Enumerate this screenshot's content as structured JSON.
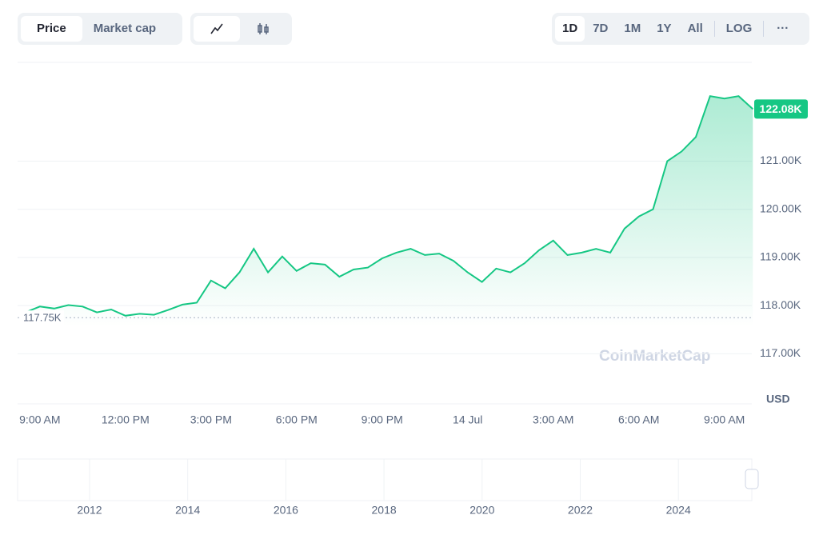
{
  "controls": {
    "tabs": [
      "Price",
      "Market cap"
    ],
    "ranges": [
      "1D",
      "7D",
      "1M",
      "1Y",
      "All",
      "LOG"
    ],
    "more": "···"
  },
  "chart_data": {
    "type": "line",
    "categories": [
      null,
      "9:00 AM",
      null,
      null,
      null,
      null,
      null,
      "12:00 PM",
      null,
      null,
      null,
      null,
      null,
      "3:00 PM",
      null,
      null,
      null,
      null,
      null,
      "6:00 PM",
      null,
      null,
      null,
      null,
      null,
      "9:00 PM",
      null,
      null,
      null,
      null,
      null,
      "14 Jul",
      null,
      null,
      null,
      null,
      null,
      "3:00 AM",
      null,
      null,
      null,
      null,
      null,
      "6:00 AM",
      null,
      null,
      null,
      null,
      null,
      "9:00 AM",
      null,
      null
    ],
    "series": [
      {
        "name": "Price",
        "color": "#16c784",
        "values": [
          117.86,
          117.98,
          117.94,
          118.01,
          117.98,
          117.86,
          117.92,
          117.79,
          117.83,
          117.81,
          117.91,
          118.02,
          118.06,
          118.52,
          118.36,
          118.69,
          119.18,
          118.69,
          119.02,
          118.72,
          118.88,
          118.85,
          118.6,
          118.75,
          118.79,
          118.98,
          119.1,
          119.18,
          119.05,
          119.08,
          118.93,
          118.69,
          118.49,
          118.77,
          118.69,
          118.88,
          119.15,
          119.35,
          119.05,
          119.1,
          119.18,
          119.1,
          119.6,
          119.85,
          120.0,
          121.0,
          121.2,
          121.5,
          122.35,
          122.3,
          122.35,
          122.08
        ]
      }
    ],
    "ylim": [
      115.96,
      123.05
    ],
    "yticks": [
      {
        "value": 117,
        "label": "117.00K"
      },
      {
        "value": 118,
        "label": "118.00K"
      },
      {
        "value": 119,
        "label": "119.00K"
      },
      {
        "value": 120,
        "label": "120.00K"
      },
      {
        "value": 121,
        "label": "121.00K"
      }
    ],
    "annotations": [
      {
        "value": 122.08,
        "label": "122.08K"
      },
      {
        "value": 117.75,
        "label": "117.75K"
      }
    ],
    "unit": "USD",
    "watermark": "CoinMarketCap",
    "grid": true
  },
  "navigator": {
    "years": [
      "2012",
      "2014",
      "2016",
      "2018",
      "2020",
      "2022",
      "2024"
    ]
  }
}
